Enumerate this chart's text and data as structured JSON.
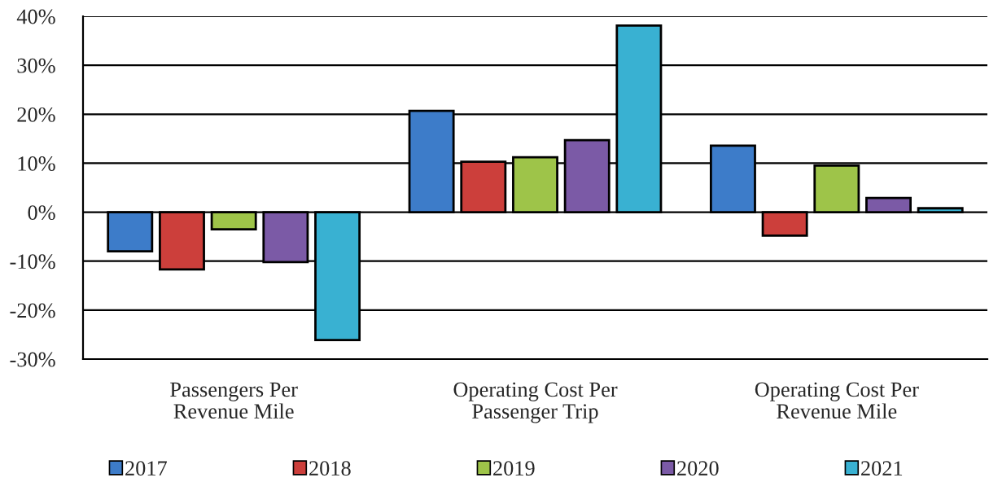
{
  "chart_data": {
    "type": "bar",
    "categories": [
      "Passengers Per\nRevenue Mile",
      "Operating Cost Per\nPassenger Trip",
      "Operating Cost Per\nRevenue Mile"
    ],
    "series": [
      {
        "name": "2017",
        "color": "#3d7cc9",
        "values": [
          -8.0,
          20.7,
          13.6
        ]
      },
      {
        "name": "2018",
        "color": "#cc3f3b",
        "values": [
          -11.7,
          10.3,
          -4.8
        ]
      },
      {
        "name": "2019",
        "color": "#9ec449",
        "values": [
          -3.5,
          11.2,
          9.5
        ]
      },
      {
        "name": "2020",
        "color": "#7b5aa6",
        "values": [
          -10.2,
          14.7,
          2.9
        ]
      },
      {
        "name": "2021",
        "color": "#39b1d2",
        "values": [
          -26.1,
          38.1,
          0.8
        ]
      }
    ],
    "ylim": [
      -30,
      40
    ],
    "yticks": [
      {
        "value": -30,
        "label": "-30%"
      },
      {
        "value": -20,
        "label": "-20%"
      },
      {
        "value": -10,
        "label": "-10%"
      },
      {
        "value": 0,
        "label": "0%"
      },
      {
        "value": 10,
        "label": "10%"
      },
      {
        "value": 20,
        "label": "20%"
      },
      {
        "value": 30,
        "label": "30%"
      },
      {
        "value": 40,
        "label": "40%"
      }
    ],
    "grid": "y",
    "legend": "bottom"
  }
}
